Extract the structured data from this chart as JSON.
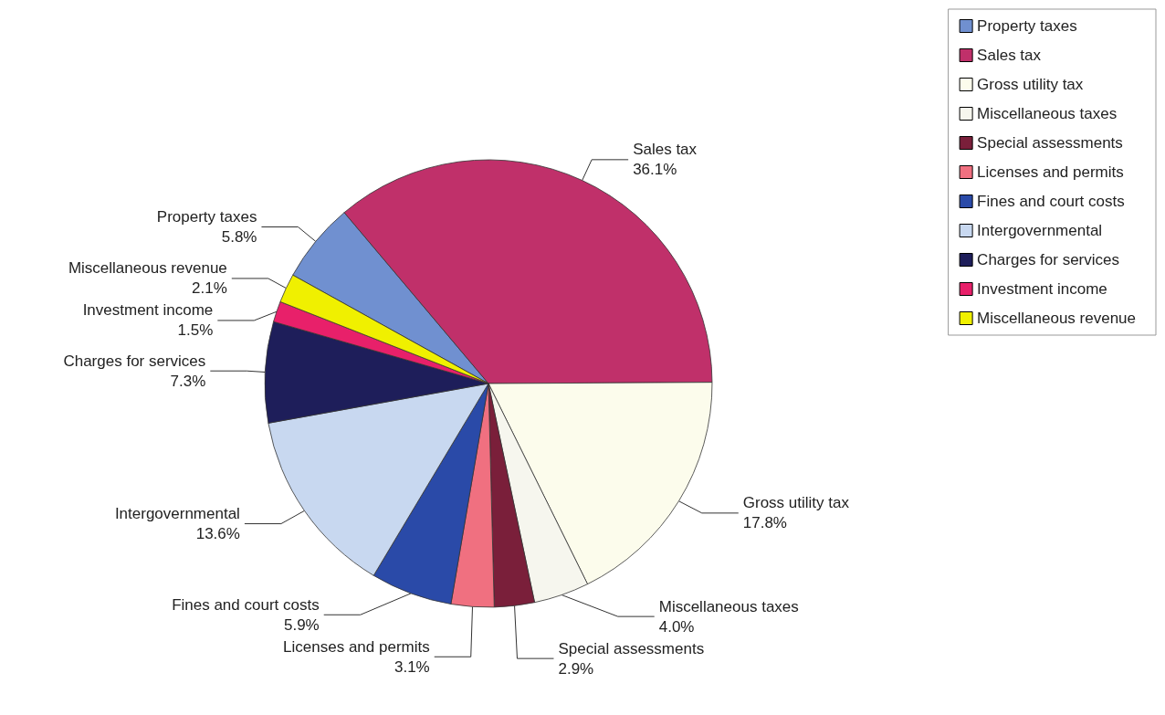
{
  "chart_data": {
    "type": "pie",
    "categories": [
      "Property taxes",
      "Sales tax",
      "Gross utility tax",
      "Miscellaneous taxes",
      "Special assessments",
      "Licenses and permits",
      "Fines and court costs",
      "Intergovernmental",
      "Charges for services",
      "Investment income",
      "Miscellaneous revenue"
    ],
    "values": [
      5.8,
      36.1,
      17.8,
      4.0,
      2.9,
      3.1,
      5.9,
      13.6,
      7.3,
      1.5,
      2.1
    ],
    "value_labels": [
      "5.8%",
      "36.1%",
      "17.8%",
      "4.0%",
      "2.9%",
      "3.1%",
      "5.9%",
      "13.6%",
      "7.3%",
      "1.5%",
      "2.1%"
    ],
    "colors": [
      "#7090d0",
      "#c0306a",
      "#fcfcec",
      "#f6f6ee",
      "#7a1f3a",
      "#f07080",
      "#2a4aa8",
      "#c8d8f0",
      "#1e1e5a",
      "#e8206a",
      "#f0f000"
    ],
    "legend": "right"
  }
}
